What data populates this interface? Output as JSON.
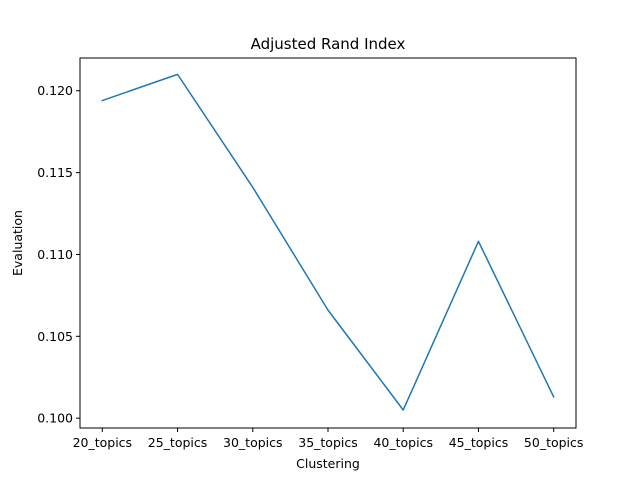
{
  "chart_data": {
    "type": "line",
    "title": "Adjusted Rand Index",
    "xlabel": "Clustering",
    "ylabel": "Evaluation",
    "categories": [
      "20_topics",
      "25_topics",
      "30_topics",
      "35_topics",
      "40_topics",
      "45_topics",
      "50_topics"
    ],
    "series": [
      {
        "values": [
          0.1194,
          0.121,
          0.1141,
          0.1066,
          0.1005,
          0.1108,
          0.1013
        ],
        "color": "#1f77b4"
      }
    ],
    "ylim": [
      0.0994,
      0.122
    ],
    "yticks": [
      "0.100",
      "0.105",
      "0.110",
      "0.115",
      "0.120"
    ],
    "grid": false,
    "legend": "none"
  }
}
